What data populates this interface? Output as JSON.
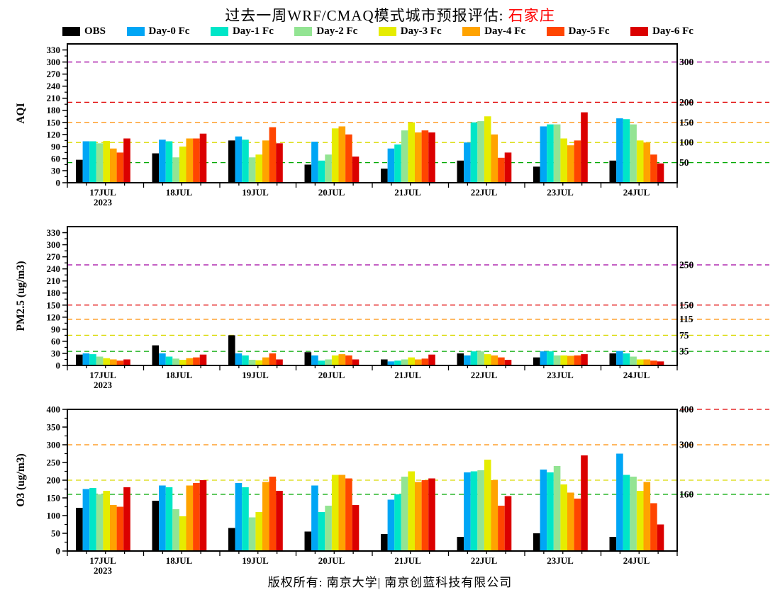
{
  "title": {
    "text": "过去一周WRF/CMAQ模式城市预报评估: ",
    "city": "石家庄"
  },
  "legend": {
    "items": [
      {
        "label": "OBS",
        "color": "#000000"
      },
      {
        "label": "Day-0 Fc",
        "color": "#00A6F5"
      },
      {
        "label": "Day-1 Fc",
        "color": "#00E6C8"
      },
      {
        "label": "Day-2 Fc",
        "color": "#93E493"
      },
      {
        "label": "Day-3 Fc",
        "color": "#E6EC00"
      },
      {
        "label": "Day-4 Fc",
        "color": "#FFA300"
      },
      {
        "label": "Day-5 Fc",
        "color": "#FF4500"
      },
      {
        "label": "Day-6 Fc",
        "color": "#DB0000"
      }
    ]
  },
  "footer": {
    "text": "版权所有: 南京大学| 南京创蓝科技有限公司"
  },
  "chart_data": [
    {
      "type": "bar",
      "panel": "aqi",
      "ylabel": "AQI",
      "xlabel": "",
      "ylim": [
        0,
        345
      ],
      "yticks": [
        0,
        30,
        60,
        90,
        120,
        150,
        180,
        210,
        240,
        270,
        300,
        330
      ],
      "legend_position": "top",
      "categories": [
        "17JUL",
        "18JUL",
        "19JUL",
        "20JUL",
        "21JUL",
        "22JUL",
        "23JUL",
        "24JUL"
      ],
      "year_label": "2023",
      "reference_lines": [
        {
          "value": 50,
          "color": "#00A900",
          "label": "50"
        },
        {
          "value": 100,
          "color": "#D9D900",
          "label": "100"
        },
        {
          "value": 150,
          "color": "#FF8C00",
          "label": "150"
        },
        {
          "value": 200,
          "color": "#E00000",
          "label": "200"
        },
        {
          "value": 300,
          "color": "#A000A0",
          "label": "300"
        }
      ],
      "series": [
        {
          "name": "OBS",
          "values": [
            57,
            73,
            105,
            45,
            35,
            55,
            40,
            55
          ]
        },
        {
          "name": "Day-0 Fc",
          "values": [
            103,
            107,
            115,
            102,
            85,
            100,
            140,
            160
          ]
        },
        {
          "name": "Day-1 Fc",
          "values": [
            103,
            103,
            107,
            55,
            95,
            150,
            145,
            158
          ]
        },
        {
          "name": "Day-2 Fc",
          "values": [
            98,
            63,
            63,
            70,
            130,
            153,
            145,
            145
          ]
        },
        {
          "name": "Day-3 Fc",
          "values": [
            104,
            90,
            70,
            135,
            150,
            165,
            110,
            105
          ]
        },
        {
          "name": "Day-4 Fc",
          "values": [
            85,
            110,
            105,
            140,
            125,
            120,
            93,
            100
          ]
        },
        {
          "name": "Day-5 Fc",
          "values": [
            75,
            110,
            138,
            120,
            130,
            62,
            105,
            70
          ]
        },
        {
          "name": "Day-6 Fc",
          "values": [
            110,
            122,
            98,
            65,
            125,
            75,
            175,
            48
          ]
        }
      ]
    },
    {
      "type": "bar",
      "panel": "pm25",
      "ylabel": "PM2.5 (ug/m3)",
      "xlabel": "",
      "ylim": [
        0,
        345
      ],
      "yticks": [
        0,
        30,
        60,
        90,
        120,
        150,
        180,
        210,
        240,
        270,
        300,
        330
      ],
      "legend_position": "top",
      "categories": [
        "17JUL",
        "18JUL",
        "19JUL",
        "20JUL",
        "21JUL",
        "22JUL",
        "23JUL",
        "24JUL"
      ],
      "year_label": "2023",
      "reference_lines": [
        {
          "value": 35,
          "color": "#00A900",
          "label": "35"
        },
        {
          "value": 75,
          "color": "#D9D900",
          "label": "75"
        },
        {
          "value": 115,
          "color": "#FF8C00",
          "label": "115"
        },
        {
          "value": 150,
          "color": "#E00000",
          "label": "150"
        },
        {
          "value": 250,
          "color": "#A000A0",
          "label": "250"
        }
      ],
      "series": [
        {
          "name": "OBS",
          "values": [
            27,
            50,
            75,
            33,
            15,
            30,
            20,
            30
          ]
        },
        {
          "name": "Day-0 Fc",
          "values": [
            30,
            30,
            30,
            25,
            10,
            25,
            35,
            36
          ]
        },
        {
          "name": "Day-1 Fc",
          "values": [
            28,
            22,
            25,
            12,
            12,
            35,
            35,
            30
          ]
        },
        {
          "name": "Day-2 Fc",
          "values": [
            22,
            17,
            14,
            15,
            15,
            35,
            25,
            22
          ]
        },
        {
          "name": "Day-3 Fc",
          "values": [
            18,
            14,
            13,
            25,
            20,
            28,
            25,
            15
          ]
        },
        {
          "name": "Day-4 Fc",
          "values": [
            15,
            18,
            20,
            28,
            15,
            25,
            24,
            15
          ]
        },
        {
          "name": "Day-5 Fc",
          "values": [
            12,
            20,
            30,
            25,
            17,
            20,
            25,
            12
          ]
        },
        {
          "name": "Day-6 Fc",
          "values": [
            15,
            27,
            15,
            15,
            27,
            14,
            28,
            10
          ]
        }
      ]
    },
    {
      "type": "bar",
      "panel": "o3",
      "ylabel": "O3 (ug/m3)",
      "xlabel": "",
      "ylim": [
        0,
        400
      ],
      "yticks": [
        0,
        50,
        100,
        150,
        200,
        250,
        300,
        350,
        400
      ],
      "legend_position": "top",
      "categories": [
        "17JUL",
        "18JUL",
        "19JUL",
        "20JUL",
        "21JUL",
        "22JUL",
        "23JUL",
        "24JUL"
      ],
      "year_label": "2023",
      "reference_lines": [
        {
          "value": 160,
          "color": "#00A900",
          "label": "160"
        },
        {
          "value": 200,
          "color": "#D9D900",
          "label": ""
        },
        {
          "value": 300,
          "color": "#FF8C00",
          "label": "300"
        },
        {
          "value": 400,
          "color": "#E00000",
          "label": "400"
        }
      ],
      "series": [
        {
          "name": "OBS",
          "values": [
            122,
            142,
            65,
            55,
            48,
            40,
            50,
            40
          ]
        },
        {
          "name": "Day-0 Fc",
          "values": [
            175,
            185,
            192,
            185,
            145,
            222,
            230,
            275
          ]
        },
        {
          "name": "Day-1 Fc",
          "values": [
            178,
            180,
            180,
            110,
            160,
            225,
            222,
            215
          ]
        },
        {
          "name": "Day-2 Fc",
          "values": [
            160,
            118,
            95,
            128,
            210,
            228,
            240,
            210
          ]
        },
        {
          "name": "Day-3 Fc",
          "values": [
            170,
            98,
            110,
            215,
            225,
            258,
            188,
            170
          ]
        },
        {
          "name": "Day-4 Fc",
          "values": [
            130,
            185,
            195,
            215,
            195,
            200,
            165,
            195
          ]
        },
        {
          "name": "Day-5 Fc",
          "values": [
            125,
            192,
            210,
            205,
            200,
            128,
            148,
            135
          ]
        },
        {
          "name": "Day-6 Fc",
          "values": [
            180,
            200,
            170,
            130,
            205,
            155,
            270,
            75
          ]
        }
      ]
    }
  ]
}
